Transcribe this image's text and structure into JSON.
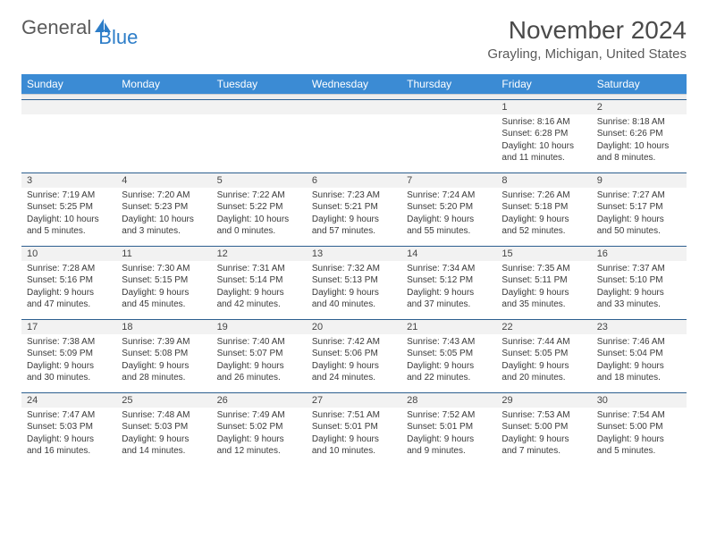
{
  "brand": {
    "part1": "General",
    "part2": "Blue"
  },
  "title": "November 2024",
  "location": "Grayling, Michigan, United States",
  "columns": [
    "Sunday",
    "Monday",
    "Tuesday",
    "Wednesday",
    "Thursday",
    "Friday",
    "Saturday"
  ],
  "colors": {
    "header_bg": "#3b8bd4",
    "row_divider": "#2d5f8f"
  },
  "weeks": [
    [
      null,
      null,
      null,
      null,
      null,
      {
        "n": "1",
        "sr": "8:16 AM",
        "ss": "6:28 PM",
        "dl": "10 hours and 11 minutes."
      },
      {
        "n": "2",
        "sr": "8:18 AM",
        "ss": "6:26 PM",
        "dl": "10 hours and 8 minutes."
      }
    ],
    [
      {
        "n": "3",
        "sr": "7:19 AM",
        "ss": "5:25 PM",
        "dl": "10 hours and 5 minutes."
      },
      {
        "n": "4",
        "sr": "7:20 AM",
        "ss": "5:23 PM",
        "dl": "10 hours and 3 minutes."
      },
      {
        "n": "5",
        "sr": "7:22 AM",
        "ss": "5:22 PM",
        "dl": "10 hours and 0 minutes."
      },
      {
        "n": "6",
        "sr": "7:23 AM",
        "ss": "5:21 PM",
        "dl": "9 hours and 57 minutes."
      },
      {
        "n": "7",
        "sr": "7:24 AM",
        "ss": "5:20 PM",
        "dl": "9 hours and 55 minutes."
      },
      {
        "n": "8",
        "sr": "7:26 AM",
        "ss": "5:18 PM",
        "dl": "9 hours and 52 minutes."
      },
      {
        "n": "9",
        "sr": "7:27 AM",
        "ss": "5:17 PM",
        "dl": "9 hours and 50 minutes."
      }
    ],
    [
      {
        "n": "10",
        "sr": "7:28 AM",
        "ss": "5:16 PM",
        "dl": "9 hours and 47 minutes."
      },
      {
        "n": "11",
        "sr": "7:30 AM",
        "ss": "5:15 PM",
        "dl": "9 hours and 45 minutes."
      },
      {
        "n": "12",
        "sr": "7:31 AM",
        "ss": "5:14 PM",
        "dl": "9 hours and 42 minutes."
      },
      {
        "n": "13",
        "sr": "7:32 AM",
        "ss": "5:13 PM",
        "dl": "9 hours and 40 minutes."
      },
      {
        "n": "14",
        "sr": "7:34 AM",
        "ss": "5:12 PM",
        "dl": "9 hours and 37 minutes."
      },
      {
        "n": "15",
        "sr": "7:35 AM",
        "ss": "5:11 PM",
        "dl": "9 hours and 35 minutes."
      },
      {
        "n": "16",
        "sr": "7:37 AM",
        "ss": "5:10 PM",
        "dl": "9 hours and 33 minutes."
      }
    ],
    [
      {
        "n": "17",
        "sr": "7:38 AM",
        "ss": "5:09 PM",
        "dl": "9 hours and 30 minutes."
      },
      {
        "n": "18",
        "sr": "7:39 AM",
        "ss": "5:08 PM",
        "dl": "9 hours and 28 minutes."
      },
      {
        "n": "19",
        "sr": "7:40 AM",
        "ss": "5:07 PM",
        "dl": "9 hours and 26 minutes."
      },
      {
        "n": "20",
        "sr": "7:42 AM",
        "ss": "5:06 PM",
        "dl": "9 hours and 24 minutes."
      },
      {
        "n": "21",
        "sr": "7:43 AM",
        "ss": "5:05 PM",
        "dl": "9 hours and 22 minutes."
      },
      {
        "n": "22",
        "sr": "7:44 AM",
        "ss": "5:05 PM",
        "dl": "9 hours and 20 minutes."
      },
      {
        "n": "23",
        "sr": "7:46 AM",
        "ss": "5:04 PM",
        "dl": "9 hours and 18 minutes."
      }
    ],
    [
      {
        "n": "24",
        "sr": "7:47 AM",
        "ss": "5:03 PM",
        "dl": "9 hours and 16 minutes."
      },
      {
        "n": "25",
        "sr": "7:48 AM",
        "ss": "5:03 PM",
        "dl": "9 hours and 14 minutes."
      },
      {
        "n": "26",
        "sr": "7:49 AM",
        "ss": "5:02 PM",
        "dl": "9 hours and 12 minutes."
      },
      {
        "n": "27",
        "sr": "7:51 AM",
        "ss": "5:01 PM",
        "dl": "9 hours and 10 minutes."
      },
      {
        "n": "28",
        "sr": "7:52 AM",
        "ss": "5:01 PM",
        "dl": "9 hours and 9 minutes."
      },
      {
        "n": "29",
        "sr": "7:53 AM",
        "ss": "5:00 PM",
        "dl": "9 hours and 7 minutes."
      },
      {
        "n": "30",
        "sr": "7:54 AM",
        "ss": "5:00 PM",
        "dl": "9 hours and 5 minutes."
      }
    ]
  ],
  "labels": {
    "sunrise": "Sunrise: ",
    "sunset": "Sunset: ",
    "daylight": "Daylight: "
  }
}
